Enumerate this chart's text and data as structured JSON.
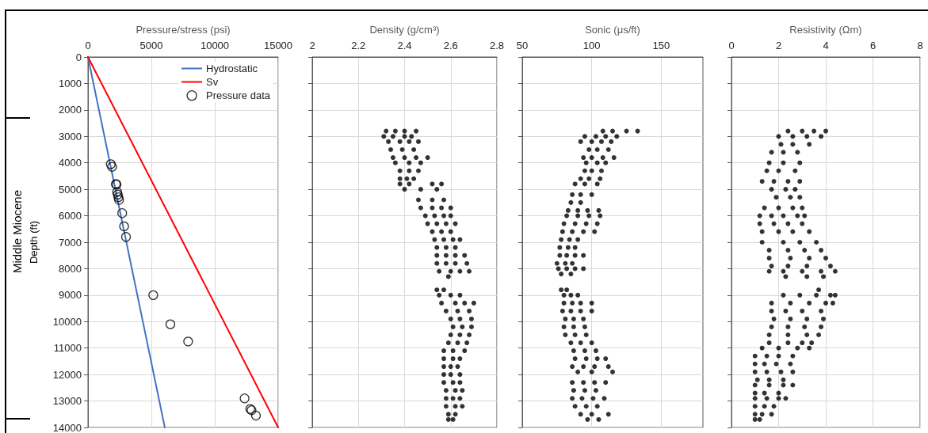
{
  "chart_data": [
    {
      "type": "line",
      "xlabel": "Pressure/stress (psi)",
      "ylabel": "Depth (ft)",
      "xlim": [
        0,
        15000
      ],
      "xticks": [
        0,
        5000,
        10000,
        15000
      ],
      "ylim": [
        14000,
        0
      ],
      "yticks": [
        0,
        1000,
        2000,
        3000,
        4000,
        5000,
        6000,
        7000,
        8000,
        9000,
        10000,
        11000,
        12000,
        13000,
        14000
      ],
      "grid": true,
      "legend": "top right",
      "annotations": [
        "Middle Miocene"
      ],
      "series": [
        {
          "name": "Hydrostatic",
          "color": "#4472c4",
          "marker": "none",
          "x": [
            0,
            6060
          ],
          "values": [
            0,
            14000
          ]
        },
        {
          "name": "Sv",
          "color": "#ff0000",
          "marker": "none",
          "x": [
            0,
            15000
          ],
          "values": [
            0,
            14000
          ]
        },
        {
          "name": "Pressure data",
          "type": "scatter",
          "color": "#000000",
          "marker": "circle",
          "x": [
            1800,
            1900,
            2200,
            2250,
            2300,
            2350,
            2400,
            2450,
            2700,
            2850,
            3000,
            5150,
            6500,
            7900,
            12350,
            12800,
            12900,
            13250
          ],
          "values": [
            4050,
            4150,
            4800,
            4820,
            5100,
            5200,
            5300,
            5400,
            5900,
            6400,
            6800,
            9000,
            10100,
            10750,
            12900,
            13300,
            13350,
            13550
          ]
        }
      ]
    },
    {
      "type": "scatter",
      "xlabel": "Density (g/cm³)",
      "xlim": [
        2,
        2.8
      ],
      "xticks": [
        2,
        2.2,
        2.4,
        2.6,
        2.8
      ],
      "ylim": [
        14000,
        0
      ],
      "yticks": [
        0,
        1000,
        2000,
        3000,
        4000,
        5000,
        6000,
        7000,
        8000,
        9000,
        10000,
        11000,
        12000,
        13000,
        14000
      ],
      "grid": true,
      "tick_labels": "x",
      "series": [
        {
          "color": "#000000",
          "marker": "circle",
          "x": [
            2.32,
            2.36,
            2.4,
            2.45,
            2.31,
            2.35,
            2.4,
            2.43,
            2.33,
            2.38,
            2.42,
            2.46,
            2.34,
            2.39,
            2.44,
            2.35,
            2.4,
            2.45,
            2.5,
            2.36,
            2.42,
            2.47,
            2.38,
            2.42,
            2.46,
            2.38,
            2.41,
            2.44,
            2.38,
            2.42,
            2.52,
            2.56,
            2.4,
            2.47,
            2.54,
            2.46,
            2.52,
            2.57,
            2.47,
            2.52,
            2.56,
            2.6,
            2.49,
            2.53,
            2.57,
            2.6,
            2.5,
            2.54,
            2.58,
            2.62,
            2.52,
            2.56,
            2.6,
            2.53,
            2.57,
            2.61,
            2.64,
            2.54,
            2.58,
            2.62,
            2.54,
            2.58,
            2.62,
            2.66,
            2.54,
            2.58,
            2.62,
            2.67,
            2.55,
            2.6,
            2.64,
            2.68,
            2.59,
            2.54,
            2.57,
            2.55,
            2.6,
            2.64,
            2.56,
            2.62,
            2.66,
            2.7,
            2.58,
            2.63,
            2.68,
            2.6,
            2.64,
            2.69,
            2.61,
            2.65,
            2.69,
            2.6,
            2.64,
            2.68,
            2.59,
            2.63,
            2.67,
            2.57,
            2.61,
            2.66,
            2.57,
            2.61,
            2.64,
            2.57,
            2.6,
            2.63,
            2.57,
            2.6,
            2.64,
            2.57,
            2.61,
            2.64,
            2.58,
            2.62,
            2.65,
            2.58,
            2.61,
            2.64,
            2.58,
            2.62,
            2.65,
            2.59,
            2.62,
            2.59,
            2.61
          ],
          "values": [
            2800,
            2800,
            2800,
            2800,
            3000,
            3000,
            3000,
            3000,
            3200,
            3200,
            3200,
            3200,
            3500,
            3500,
            3500,
            3800,
            3800,
            3800,
            3800,
            4000,
            4000,
            4000,
            4300,
            4300,
            4300,
            4600,
            4600,
            4600,
            4800,
            4800,
            4800,
            4800,
            5000,
            5000,
            5000,
            5400,
            5400,
            5400,
            5700,
            5700,
            5700,
            5700,
            6000,
            6000,
            6000,
            6000,
            6300,
            6300,
            6300,
            6300,
            6600,
            6600,
            6600,
            6900,
            6900,
            6900,
            6900,
            7200,
            7200,
            7200,
            7500,
            7500,
            7500,
            7500,
            7800,
            7800,
            7800,
            7800,
            8100,
            8100,
            8100,
            8100,
            8300,
            8800,
            8800,
            9000,
            9000,
            9000,
            9300,
            9300,
            9300,
            9300,
            9600,
            9600,
            9600,
            9900,
            9900,
            9900,
            10200,
            10200,
            10200,
            10500,
            10500,
            10500,
            10800,
            10800,
            10800,
            11100,
            11100,
            11100,
            11400,
            11400,
            11400,
            11700,
            11700,
            11700,
            12000,
            12000,
            12000,
            12300,
            12300,
            12300,
            12600,
            12600,
            12600,
            12900,
            12900,
            12900,
            13200,
            13200,
            13200,
            13500,
            13500,
            13700,
            13700
          ]
        }
      ]
    },
    {
      "type": "scatter",
      "xlabel": "Sonic (μs/ft)",
      "xlim": [
        50,
        180
      ],
      "xticks": [
        50,
        100,
        150
      ],
      "ylim": [
        14000,
        0
      ],
      "yticks": [
        0,
        1000,
        2000,
        3000,
        4000,
        5000,
        6000,
        7000,
        8000,
        9000,
        10000,
        11000,
        12000,
        13000,
        14000
      ],
      "grid": true,
      "tick_labels": "x",
      "series": [
        {
          "color": "#000000",
          "marker": "circle",
          "x": [
            108,
            115,
            125,
            133,
            95,
            103,
            110,
            118,
            92,
            100,
            107,
            114,
            98,
            104,
            112,
            94,
            100,
            108,
            116,
            96,
            104,
            110,
            95,
            100,
            107,
            92,
            98,
            106,
            88,
            95,
            104,
            86,
            92,
            100,
            85,
            92,
            83,
            90,
            97,
            105,
            82,
            90,
            98,
            106,
            80,
            88,
            96,
            104,
            79,
            86,
            94,
            102,
            78,
            84,
            90,
            77,
            83,
            88,
            77,
            82,
            88,
            94,
            75,
            81,
            86,
            76,
            82,
            88,
            94,
            78,
            85,
            78,
            82,
            80,
            85,
            90,
            80,
            86,
            92,
            100,
            79,
            85,
            92,
            100,
            81,
            87,
            94,
            80,
            87,
            95,
            81,
            88,
            96,
            85,
            92,
            100,
            87,
            95,
            103,
            88,
            96,
            104,
            110,
            86,
            94,
            102,
            112,
            90,
            100,
            115,
            86,
            94,
            102,
            110,
            87,
            95,
            103,
            86,
            93,
            101,
            109,
            88,
            96,
            104,
            92,
            100,
            112,
            97,
            105
          ],
          "values": [
            2800,
            2800,
            2800,
            2800,
            3000,
            3000,
            3000,
            3000,
            3200,
            3200,
            3200,
            3200,
            3500,
            3500,
            3500,
            3800,
            3800,
            3800,
            3800,
            4000,
            4000,
            4000,
            4300,
            4300,
            4300,
            4600,
            4600,
            4600,
            4800,
            4800,
            4800,
            5200,
            5200,
            5200,
            5500,
            5500,
            5800,
            5800,
            5800,
            5800,
            6000,
            6000,
            6000,
            6000,
            6300,
            6300,
            6300,
            6300,
            6600,
            6600,
            6600,
            6600,
            6900,
            6900,
            6900,
            7200,
            7200,
            7200,
            7500,
            7500,
            7500,
            7500,
            7800,
            7800,
            7800,
            8000,
            8000,
            8000,
            8000,
            8200,
            8200,
            8800,
            8800,
            9000,
            9000,
            9000,
            9300,
            9300,
            9300,
            9300,
            9600,
            9600,
            9600,
            9600,
            9900,
            9900,
            9900,
            10200,
            10200,
            10200,
            10500,
            10500,
            10500,
            10800,
            10800,
            10800,
            11100,
            11100,
            11100,
            11400,
            11400,
            11400,
            11400,
            11700,
            11700,
            11700,
            11700,
            11900,
            11900,
            11900,
            12300,
            12300,
            12300,
            12300,
            12600,
            12600,
            12600,
            12900,
            12900,
            12900,
            12900,
            13200,
            13200,
            13200,
            13500,
            13500,
            13500,
            13700,
            13700
          ]
        }
      ]
    },
    {
      "type": "scatter",
      "xlabel": "Resistivity (Ωm)",
      "xlim": [
        0,
        8
      ],
      "xticks": [
        0,
        2,
        4,
        6,
        8
      ],
      "ylim": [
        14000,
        0
      ],
      "yticks": [
        0,
        1000,
        2000,
        3000,
        4000,
        5000,
        6000,
        7000,
        8000,
        9000,
        10000,
        11000,
        12000,
        13000,
        14000
      ],
      "grid": true,
      "tick_labels": "x",
      "series": [
        {
          "color": "#000000",
          "marker": "circle",
          "x": [
            2.4,
            3.0,
            3.5,
            4.0,
            2.0,
            2.6,
            3.2,
            3.8,
            2.1,
            2.6,
            3.3,
            1.7,
            2.2,
            2.8,
            1.6,
            2.2,
            2.9,
            1.5,
            2.0,
            2.7,
            1.3,
            1.8,
            2.4,
            2.9,
            1.7,
            2.3,
            2.7,
            1.9,
            2.5,
            2.9,
            1.4,
            2.0,
            2.6,
            3.0,
            1.2,
            1.7,
            2.2,
            2.8,
            3.1,
            1.2,
            1.8,
            2.4,
            3.0,
            1.3,
            2.0,
            2.6,
            3.3,
            1.3,
            2.2,
            2.9,
            3.6,
            1.6,
            2.4,
            3.1,
            3.8,
            1.6,
            2.5,
            3.3,
            4.0,
            1.7,
            2.4,
            3.2,
            4.2,
            1.6,
            2.2,
            3.0,
            3.8,
            4.4,
            2.3,
            3.2,
            3.9,
            3.7,
            2.2,
            2.9,
            3.6,
            4.2,
            4.4,
            1.7,
            2.5,
            3.3,
            4.0,
            4.3,
            1.7,
            2.3,
            3.0,
            3.8,
            1.8,
            2.5,
            3.2,
            3.9,
            1.7,
            2.4,
            3.1,
            3.8,
            1.6,
            2.4,
            3.2,
            3.7,
            1.6,
            2.4,
            3.0,
            3.4,
            1.3,
            2.0,
            2.8,
            3.3,
            1.0,
            1.5,
            2.0,
            2.6,
            1.0,
            1.4,
            1.9,
            2.5,
            1.0,
            1.5,
            2.1,
            2.6,
            1.1,
            1.6,
            2.2,
            1.0,
            1.6,
            2.2,
            2.6,
            1.0,
            1.4,
            2.0,
            1.0,
            1.5,
            2.0,
            2.3,
            1.0,
            1.4,
            1.8,
            1.0,
            1.3,
            1.7,
            1.0,
            1.2
          ],
          "values": [
            2800,
            2800,
            2800,
            2800,
            3000,
            3000,
            3000,
            3000,
            3300,
            3300,
            3300,
            3600,
            3600,
            3600,
            4000,
            4000,
            4000,
            4300,
            4300,
            4300,
            4700,
            4700,
            4700,
            4700,
            5000,
            5000,
            5000,
            5300,
            5300,
            5300,
            5700,
            5700,
            5700,
            5700,
            6000,
            6000,
            6000,
            6000,
            6000,
            6300,
            6300,
            6300,
            6300,
            6600,
            6600,
            6600,
            6600,
            7000,
            7000,
            7000,
            7000,
            7300,
            7300,
            7300,
            7300,
            7600,
            7600,
            7600,
            7600,
            7900,
            7900,
            7900,
            7900,
            8100,
            8100,
            8100,
            8100,
            8100,
            8300,
            8300,
            8300,
            8800,
            9000,
            9000,
            9000,
            9000,
            9000,
            9300,
            9300,
            9300,
            9300,
            9300,
            9600,
            9600,
            9600,
            9600,
            9900,
            9900,
            9900,
            9900,
            10200,
            10200,
            10200,
            10200,
            10500,
            10500,
            10500,
            10500,
            10800,
            10800,
            10800,
            10800,
            11000,
            11000,
            11000,
            11000,
            11300,
            11300,
            11300,
            11300,
            11600,
            11600,
            11600,
            11600,
            11900,
            11900,
            11900,
            11900,
            12200,
            12200,
            12200,
            12400,
            12400,
            12400,
            12400,
            12700,
            12700,
            12700,
            12900,
            12900,
            12900,
            12900,
            13200,
            13200,
            13200,
            13500,
            13500,
            13500,
            13700,
            13700
          ]
        }
      ]
    }
  ]
}
